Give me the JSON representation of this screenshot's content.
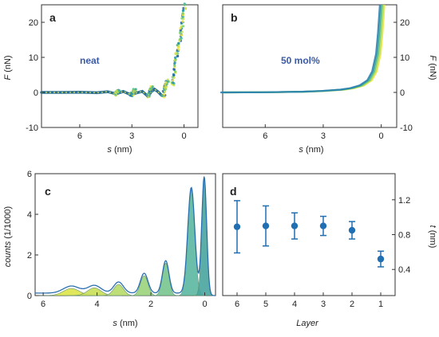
{
  "chart_data": [
    {
      "panel": "a",
      "type": "scatter",
      "annotation": "neat",
      "xlabel_italic": "s",
      "xlabel_unit": " (nm)",
      "ylabel_italic": "F",
      "ylabel_unit": " (nN)",
      "xlim": [
        8.2,
        -0.8
      ],
      "ylim": [
        -10,
        25
      ],
      "xticks": [
        6,
        3,
        0
      ],
      "yticks": [
        -10,
        0,
        10,
        20
      ],
      "baseline": [
        [
          8.2,
          0
        ],
        [
          7.0,
          0
        ],
        [
          6.0,
          0.05
        ],
        [
          5.0,
          -0.1
        ],
        [
          4.4,
          0.2
        ],
        [
          3.9,
          -0.4
        ],
        [
          3.5,
          0.3
        ],
        [
          3.1,
          -0.6
        ],
        [
          2.7,
          -0.1
        ],
        [
          2.4,
          0.3
        ],
        [
          2.1,
          -1.0
        ],
        [
          1.9,
          0.1
        ],
        [
          1.7,
          0.9
        ],
        [
          1.5,
          0.2
        ],
        [
          1.3,
          -0.8
        ]
      ],
      "steps": [
        {
          "s_from": 3.95,
          "s_to": 3.75,
          "F_from": -0.6,
          "F_to": 0.6
        },
        {
          "s_from": 3.05,
          "s_to": 2.8,
          "F_from": -0.8,
          "F_to": 0.8
        },
        {
          "s_from": 2.05,
          "s_to": 1.85,
          "F_from": -1.2,
          "F_to": 1.5
        },
        {
          "s_from": 1.2,
          "s_to": 0.95,
          "F_from": -1.0,
          "F_to": 3.5
        },
        {
          "s_from": 0.65,
          "s_to": 0.35,
          "F_from": 2.0,
          "F_to": 13.5
        },
        {
          "s_from": 0.3,
          "s_to": -0.05,
          "F_from": 13.0,
          "F_to": 25.0
        }
      ]
    },
    {
      "panel": "b",
      "type": "scatter",
      "annotation": "50 mol%",
      "xlabel_italic": "s",
      "xlabel_unit": " (nm)",
      "ylabel_italic": "F",
      "ylabel_unit": " (nN)",
      "xlim": [
        8.2,
        -0.8
      ],
      "ylim": [
        -10,
        25
      ],
      "xticks": [
        6,
        3,
        0
      ],
      "yticks": [
        -10,
        0,
        10,
        20
      ],
      "curve": [
        [
          8.2,
          0
        ],
        [
          6.0,
          0.05
        ],
        [
          4.0,
          0.2
        ],
        [
          3.0,
          0.4
        ],
        [
          2.0,
          0.8
        ],
        [
          1.5,
          1.2
        ],
        [
          1.0,
          2.0
        ],
        [
          0.6,
          3.5
        ],
        [
          0.35,
          6.0
        ],
        [
          0.15,
          11.0
        ],
        [
          0.05,
          17.0
        ],
        [
          -0.05,
          25.0
        ]
      ]
    },
    {
      "panel": "c",
      "type": "area",
      "xlabel_italic": "s",
      "xlabel_unit": " (nm)",
      "ylabel_italic": "counts",
      "ylabel_unit": " (1/1000)",
      "xlim": [
        6.3,
        -0.4
      ],
      "ylim": [
        0,
        6
      ],
      "xticks": [
        6,
        4,
        2,
        0
      ],
      "yticks": [
        0,
        2,
        4,
        6
      ],
      "peaks": [
        {
          "center": 4.95,
          "height": 0.35,
          "width": 0.3,
          "color": "#dde54a"
        },
        {
          "center": 4.1,
          "height": 0.38,
          "width": 0.25,
          "color": "#c9df58"
        },
        {
          "center": 3.2,
          "height": 0.55,
          "width": 0.18,
          "color": "#b8dc6a"
        },
        {
          "center": 2.25,
          "height": 0.98,
          "width": 0.14,
          "color": "#9bd47c"
        },
        {
          "center": 1.45,
          "height": 1.6,
          "width": 0.12,
          "color": "#78c68f"
        },
        {
          "center": 0.5,
          "height": 5.2,
          "width": 0.13,
          "color": "#5cb8a0"
        },
        {
          "center": 0.02,
          "height": 5.85,
          "width": 0.09,
          "color": "#4aa69f"
        }
      ],
      "background": 0.12
    },
    {
      "panel": "d",
      "type": "scatter",
      "xlabel": "Layer",
      "ylabel_italic": "t",
      "ylabel_unit": " (nm)",
      "ylim": [
        0.1,
        1.5
      ],
      "yticks": [
        0.4,
        0.8,
        1.2
      ],
      "categories": [
        "6",
        "5",
        "4",
        "3",
        "2",
        "1"
      ],
      "values": [
        0.89,
        0.9,
        0.9,
        0.9,
        0.85,
        0.52
      ],
      "errors": [
        0.3,
        0.23,
        0.15,
        0.11,
        0.1,
        0.09
      ],
      "color": "#1f6fb2"
    }
  ]
}
